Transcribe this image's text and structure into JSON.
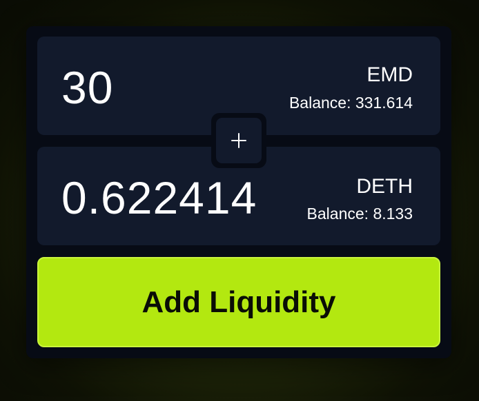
{
  "pool": {
    "token_a": {
      "amount": "30",
      "symbol": "EMD",
      "balance_text": "Balance: 331.614"
    },
    "token_b": {
      "amount": "0.622414",
      "symbol": "DETH",
      "balance_text": "Balance: 8.133"
    },
    "separator_icon": "plus-icon",
    "submit_label": "Add Liquidity"
  },
  "colors": {
    "accent": "#b3e810",
    "panel": "#121a2c",
    "card": "#070b15",
    "text": "#ffffff"
  }
}
